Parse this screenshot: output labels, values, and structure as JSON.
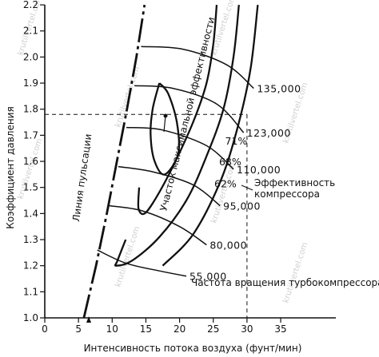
{
  "chart_data": {
    "type": "line",
    "title": "",
    "xlabel": "Интенсивность потока воздуха (фунт/мин)",
    "ylabel": "Коэффициент давления",
    "xlim": [
      0,
      37
    ],
    "ylim": [
      1.0,
      2.2
    ],
    "x_ticks": [
      "0",
      "5",
      "10",
      "15",
      "20",
      "25",
      "30",
      "35"
    ],
    "y_ticks": [
      "1.0",
      "1.1",
      "1.2",
      "1.3",
      "1.4",
      "1.5",
      "1.6",
      "1.7",
      "1.8",
      "1.9",
      "2.0",
      "2.1",
      "2.2"
    ],
    "grid": false,
    "surge_line": {
      "label": "Линия пульсации",
      "points": [
        [
          5.8,
          1.0
        ],
        [
          7.6,
          1.2
        ],
        [
          9.2,
          1.4
        ],
        [
          10.7,
          1.6
        ],
        [
          12.2,
          1.8
        ],
        [
          13.6,
          2.0
        ],
        [
          14.8,
          2.2
        ]
      ]
    },
    "speed_lines": [
      {
        "label": "55,000",
        "points": [
          [
            7.8,
            1.26
          ],
          [
            12,
            1.21
          ],
          [
            17,
            1.18
          ],
          [
            21,
            1.16
          ]
        ]
      },
      {
        "label": "80,000",
        "points": [
          [
            9.6,
            1.43
          ],
          [
            14.5,
            1.41
          ],
          [
            20,
            1.35
          ],
          [
            24,
            1.28
          ]
        ]
      },
      {
        "label": "95,000",
        "points": [
          [
            10.9,
            1.58
          ],
          [
            16,
            1.56
          ],
          [
            22,
            1.51
          ],
          [
            26,
            1.43
          ]
        ]
      },
      {
        "label": "110,000",
        "points": [
          [
            12.1,
            1.73
          ],
          [
            17.5,
            1.72
          ],
          [
            24,
            1.66
          ],
          [
            28,
            1.57
          ]
        ]
      },
      {
        "label": "123,000",
        "points": [
          [
            13.3,
            1.89
          ],
          [
            19,
            1.88
          ],
          [
            25.5,
            1.82
          ],
          [
            29.5,
            1.71
          ]
        ]
      },
      {
        "label": "135,000",
        "points": [
          [
            14.3,
            2.04
          ],
          [
            20.5,
            2.03
          ],
          [
            27,
            1.97
          ],
          [
            31,
            1.88
          ]
        ]
      }
    ],
    "efficiency_contours": [
      {
        "label": "71%",
        "points": [
          [
            17.0,
            1.9
          ],
          [
            16.0,
            1.8
          ],
          [
            15.7,
            1.7
          ],
          [
            16.3,
            1.6
          ],
          [
            17.8,
            1.55
          ],
          [
            19.8,
            1.63
          ],
          [
            19.6,
            1.75
          ],
          [
            18.3,
            1.86
          ],
          [
            17.0,
            1.9
          ]
        ]
      },
      {
        "label": "68%",
        "points": [
          [
            14.0,
            1.5
          ],
          [
            13.9,
            1.42
          ],
          [
            14.8,
            1.4
          ],
          [
            16.5,
            1.46
          ],
          [
            19.0,
            1.58
          ],
          [
            22.0,
            1.75
          ],
          [
            24.0,
            1.9
          ],
          [
            25.0,
            2.05
          ],
          [
            25.5,
            2.2
          ]
        ]
      },
      {
        "label": "62%",
        "points": [
          [
            12.0,
            1.3
          ],
          [
            10.8,
            1.22
          ],
          [
            10.6,
            1.2
          ],
          [
            13.0,
            1.22
          ],
          [
            17.0,
            1.31
          ],
          [
            21.0,
            1.45
          ],
          [
            24.0,
            1.62
          ],
          [
            26.5,
            1.8
          ],
          [
            28.0,
            2.0
          ],
          [
            28.8,
            2.2
          ]
        ]
      },
      {
        "label": "",
        "points": [
          [
            17.5,
            1.2
          ],
          [
            22.0,
            1.32
          ],
          [
            26.0,
            1.52
          ],
          [
            28.5,
            1.72
          ],
          [
            30.5,
            1.95
          ],
          [
            31.6,
            2.2
          ]
        ]
      }
    ],
    "reference_point": {
      "x": 30,
      "y": 1.78
    },
    "annotations": {
      "max_efficiency": "Участок максимальной эффективности",
      "compressor_efficiency_line1": "Эффективность",
      "compressor_efficiency_line2": "компрессора",
      "turbo_speed": "Частота вращения турбокомпрессора"
    }
  },
  "watermark": "krutilvertel.com"
}
